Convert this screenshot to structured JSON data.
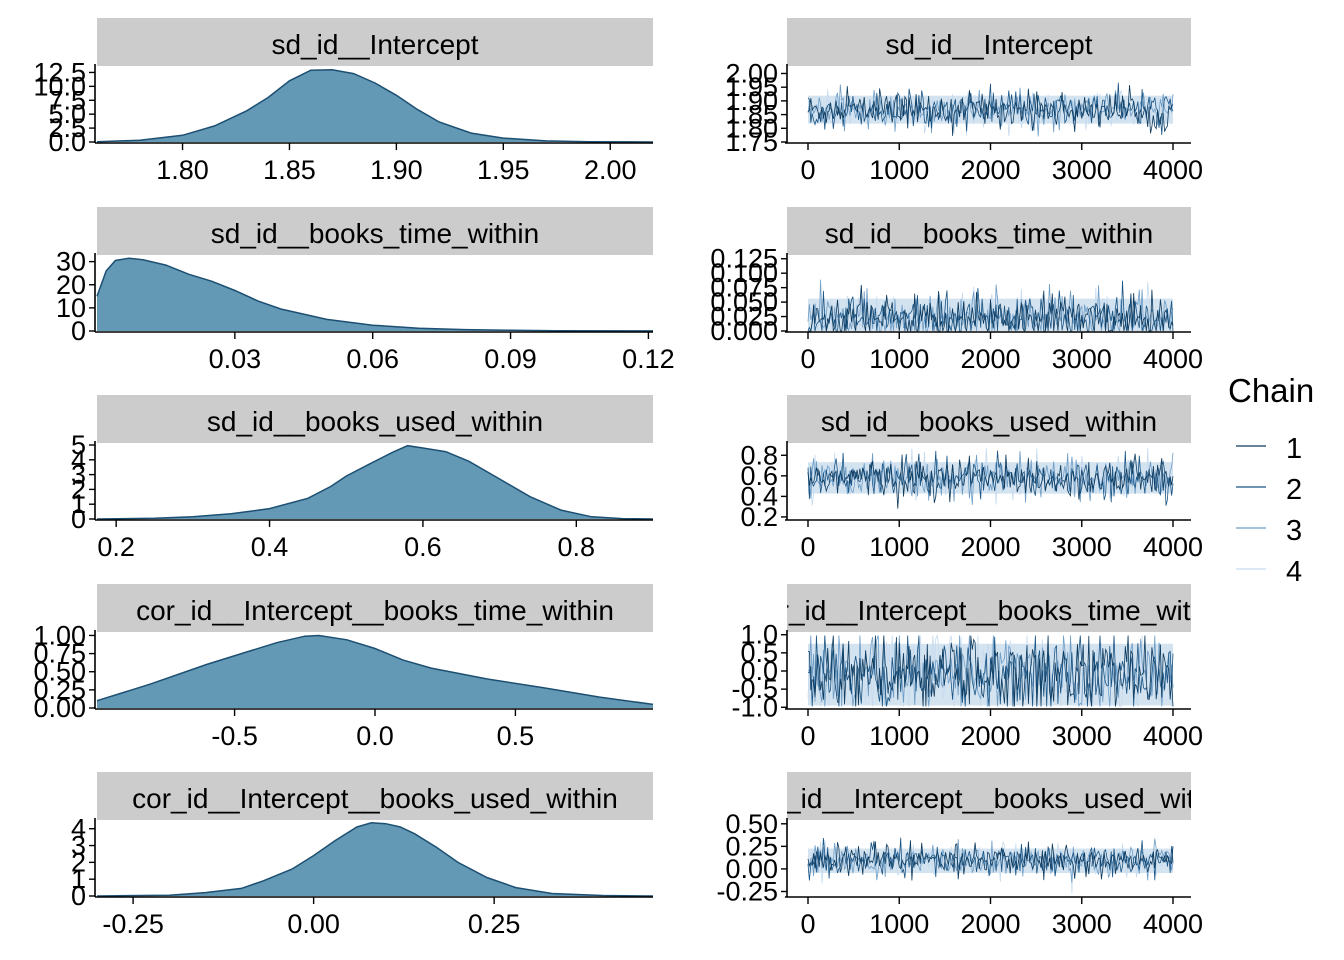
{
  "colors": {
    "strip_bg": "#cccccc",
    "density_fill": "#6399b5",
    "density_line": "#1d4f72",
    "trace_band": "#cfe0ee",
    "chain": [
      "#0e3b5e",
      "#1a5585",
      "#6e9dc6",
      "#c6dbef"
    ]
  },
  "legend": {
    "title": "Chain",
    "entries": [
      "1",
      "2",
      "3",
      "4"
    ],
    "placement": "right"
  },
  "chart_data": [
    {
      "type": "area",
      "title": "sd_id__Intercept",
      "x_ticks": [
        "1.80",
        "1.85",
        "1.90",
        "1.95",
        "2.00"
      ],
      "y_ticks": [
        "0.0",
        "2.5",
        "5.0",
        "7.5",
        "10.0",
        "12.5"
      ],
      "xlim": [
        1.76,
        2.02
      ],
      "ylim": [
        0,
        13.3
      ],
      "x": [
        1.76,
        1.78,
        1.8,
        1.815,
        1.83,
        1.84,
        1.85,
        1.86,
        1.87,
        1.88,
        1.89,
        1.9,
        1.91,
        1.92,
        1.935,
        1.95,
        1.97,
        1.99,
        2.02
      ],
      "y": [
        0.05,
        0.3,
        1.2,
        2.9,
        5.6,
        8.0,
        11.0,
        12.9,
        13.0,
        12.3,
        10.6,
        8.4,
        5.8,
        3.6,
        1.6,
        0.7,
        0.2,
        0.05,
        0.0
      ]
    },
    {
      "type": "line",
      "title": "sd_id__Intercept",
      "x_ticks": [
        "0",
        "1000",
        "2000",
        "3000",
        "4000"
      ],
      "y_ticks": [
        "1.75",
        "1.80",
        "1.85",
        "1.90",
        "1.95",
        "2.00"
      ],
      "xlim": [
        0,
        4000
      ],
      "ylim": [
        1.75,
        2.02
      ],
      "center": 1.868,
      "spread": 0.03,
      "max": 2.02,
      "min": 1.77
    },
    {
      "type": "area",
      "title": "sd_id__books_time_within",
      "x_ticks": [
        "0.03",
        "0.06",
        "0.09",
        "0.12"
      ],
      "y_ticks": [
        "0",
        "10",
        "20",
        "30"
      ],
      "xlim": [
        0,
        0.121
      ],
      "ylim": [
        0,
        32
      ],
      "x": [
        0.0,
        0.002,
        0.004,
        0.007,
        0.01,
        0.015,
        0.02,
        0.025,
        0.03,
        0.035,
        0.04,
        0.05,
        0.06,
        0.07,
        0.08,
        0.09,
        0.1,
        0.121
      ],
      "y": [
        15.0,
        26.0,
        30.5,
        31.5,
        30.8,
        28.5,
        24.5,
        21.5,
        17.5,
        13.0,
        9.5,
        5.0,
        2.5,
        1.2,
        0.6,
        0.3,
        0.15,
        0.05
      ]
    },
    {
      "type": "line",
      "title": "sd_id__books_time_within",
      "x_ticks": [
        "0",
        "1000",
        "2000",
        "3000",
        "4000"
      ],
      "y_ticks": [
        "0.000",
        "0.025",
        "0.050",
        "0.075",
        "0.100",
        "0.125"
      ],
      "xlim": [
        0,
        4000
      ],
      "ylim": [
        0,
        0.128
      ],
      "center": 0.022,
      "spread": 0.02,
      "max": 0.125,
      "min": 0.0
    },
    {
      "type": "area",
      "title": "sd_id__books_used_within",
      "x_ticks": [
        "0.2",
        "0.4",
        "0.6",
        "0.8"
      ],
      "y_ticks": [
        "0",
        "1",
        "2",
        "3",
        "4",
        "5"
      ],
      "xlim": [
        0.175,
        0.9
      ],
      "ylim": [
        0,
        5.0
      ],
      "x": [
        0.175,
        0.25,
        0.3,
        0.35,
        0.4,
        0.45,
        0.48,
        0.5,
        0.53,
        0.56,
        0.58,
        0.6,
        0.63,
        0.66,
        0.7,
        0.74,
        0.78,
        0.82,
        0.86,
        0.9
      ],
      "y": [
        0.0,
        0.05,
        0.15,
        0.35,
        0.7,
        1.4,
        2.2,
        2.9,
        3.7,
        4.5,
        4.95,
        4.8,
        4.55,
        3.9,
        2.7,
        1.5,
        0.6,
        0.15,
        0.03,
        0.0
      ]
    },
    {
      "type": "line",
      "title": "sd_id__books_used_within",
      "x_ticks": [
        "0",
        "1000",
        "2000",
        "3000",
        "4000"
      ],
      "y_ticks": [
        "0.2",
        "0.4",
        "0.6",
        "0.8"
      ],
      "xlim": [
        0,
        4000
      ],
      "ylim": [
        0.18,
        0.9
      ],
      "center": 0.58,
      "spread": 0.09,
      "max": 0.87,
      "min": 0.22
    },
    {
      "type": "area",
      "title": "cor_id__Intercept__books_time_within",
      "x_ticks": [
        "-0.5",
        "0.0",
        "0.5"
      ],
      "y_ticks": [
        "0.00",
        "0.25",
        "0.50",
        "0.75",
        "1.00"
      ],
      "xlim": [
        -0.99,
        0.99
      ],
      "ylim": [
        0,
        1.02
      ],
      "x": [
        -0.99,
        -0.8,
        -0.6,
        -0.45,
        -0.35,
        -0.25,
        -0.2,
        -0.1,
        0.0,
        0.1,
        0.2,
        0.4,
        0.6,
        0.8,
        0.99
      ],
      "y": [
        0.1,
        0.33,
        0.6,
        0.78,
        0.9,
        0.99,
        1.0,
        0.94,
        0.82,
        0.66,
        0.55,
        0.4,
        0.28,
        0.15,
        0.05
      ]
    },
    {
      "type": "line",
      "title": "cor_id__Intercept__books_time_within",
      "x_ticks": [
        "0",
        "1000",
        "2000",
        "3000",
        "4000"
      ],
      "y_ticks": [
        "-1.0",
        "-0.5",
        "0.0",
        "0.5",
        "1.0"
      ],
      "xlim": [
        0,
        4000
      ],
      "ylim": [
        -1.02,
        1.02
      ],
      "center": -0.1,
      "spread": 0.5,
      "max": 0.98,
      "min": -0.98
    },
    {
      "type": "area",
      "title": "cor_id__Intercept__books_used_within",
      "x_ticks": [
        "-0.25",
        "0.00",
        "0.25"
      ],
      "y_ticks": [
        "0",
        "1",
        "2",
        "3",
        "4"
      ],
      "xlim": [
        -0.3,
        0.47
      ],
      "ylim": [
        0,
        4.4
      ],
      "x": [
        -0.3,
        -0.2,
        -0.15,
        -0.1,
        -0.07,
        -0.03,
        0.0,
        0.03,
        0.06,
        0.08,
        0.1,
        0.12,
        0.14,
        0.17,
        0.2,
        0.24,
        0.28,
        0.33,
        0.4,
        0.47
      ],
      "y": [
        0.0,
        0.05,
        0.2,
        0.45,
        0.9,
        1.6,
        2.4,
        3.3,
        4.1,
        4.35,
        4.3,
        4.1,
        3.7,
        2.9,
        2.0,
        1.1,
        0.5,
        0.15,
        0.03,
        0.0
      ]
    },
    {
      "type": "line",
      "title": "cor_id__Intercept__books_used_within",
      "x_ticks": [
        "0",
        "1000",
        "2000",
        "3000",
        "4000"
      ],
      "y_ticks": [
        "-0.25",
        "0.00",
        "0.25",
        "0.50"
      ],
      "xlim": [
        0,
        4000
      ],
      "ylim": [
        -0.3,
        0.52
      ],
      "center": 0.09,
      "spread": 0.08,
      "max": 0.48,
      "min": -0.27
    }
  ]
}
